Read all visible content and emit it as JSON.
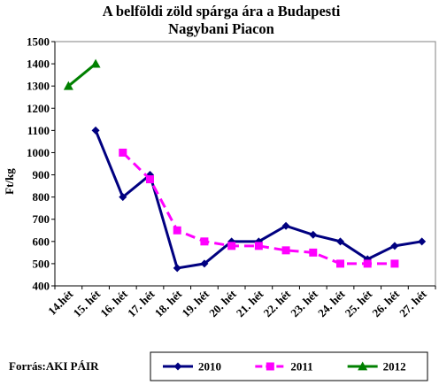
{
  "chart_data": {
    "type": "line",
    "title_lines": [
      "A belföldi zöld spárga ára a Budapesti",
      "Nagybani Piacon"
    ],
    "ylabel": "Ft/kg",
    "xlabel": "",
    "ylim": [
      400,
      1500
    ],
    "yticks": [
      400,
      500,
      600,
      700,
      800,
      900,
      1000,
      1100,
      1200,
      1300,
      1400,
      1500
    ],
    "grid": false,
    "legend_position": "bottom-right",
    "categories": [
      "14.hét",
      "15. hét",
      "16. hét",
      "17. hét",
      "18. hét",
      "19. hét",
      "20. hét",
      "21. hét",
      "22. hét",
      "23. hét",
      "24. hét",
      "25. hét",
      "26. hét",
      "27. hét"
    ],
    "series": [
      {
        "name": "2010",
        "color": "#000080",
        "marker": "diamond",
        "dash": "solid",
        "values": [
          null,
          1100,
          800,
          900,
          480,
          500,
          600,
          600,
          670,
          630,
          600,
          520,
          580,
          600
        ]
      },
      {
        "name": "2011",
        "color": "#ff00ff",
        "marker": "square",
        "dash": "dashed",
        "values": [
          null,
          null,
          1000,
          880,
          650,
          600,
          580,
          580,
          560,
          550,
          500,
          500,
          500,
          null
        ]
      },
      {
        "name": "2012",
        "color": "#008000",
        "marker": "triangle",
        "dash": "solid",
        "values": [
          1300,
          1400,
          null,
          null,
          null,
          null,
          null,
          null,
          null,
          null,
          null,
          null,
          null,
          null
        ]
      }
    ]
  },
  "source": "Forrás:AKI PÁIR"
}
